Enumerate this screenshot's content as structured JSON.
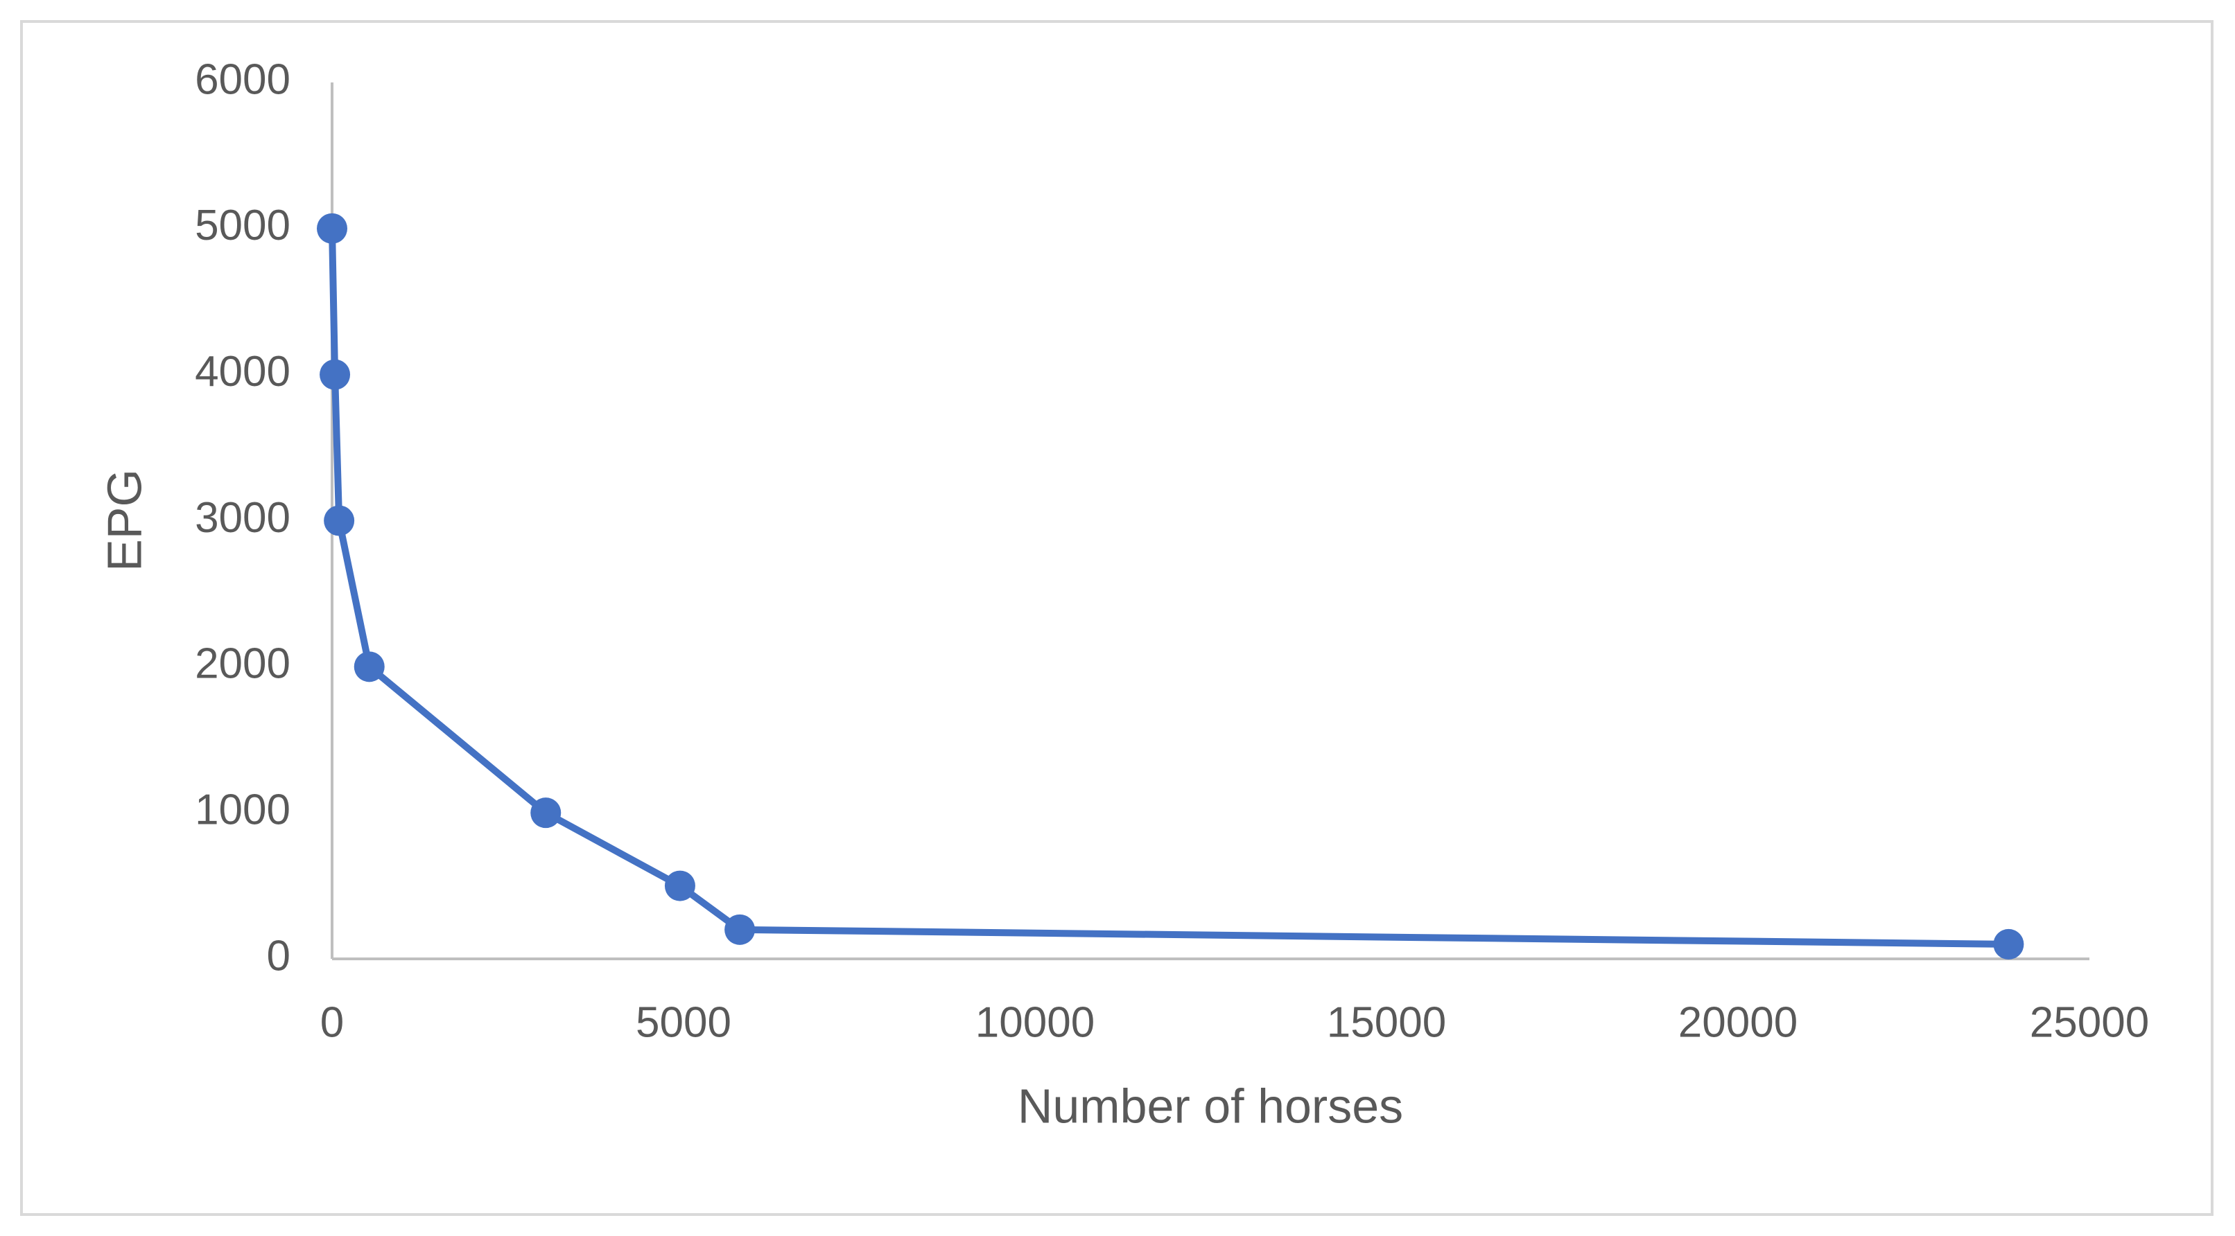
{
  "chart_data": {
    "type": "line",
    "x_label": "Number of horses",
    "y_label": "EPG",
    "x": [
      0,
      40,
      100,
      530,
      3040,
      4950,
      5800,
      23850
    ],
    "series": [
      {
        "name": "EPG",
        "color": "#4472c4",
        "values": [
          5000,
          4000,
          3000,
          2000,
          1000,
          500,
          200,
          100
        ]
      }
    ],
    "xlim": [
      0,
      25000
    ],
    "xticks": [
      0,
      5000,
      10000,
      15000,
      20000,
      25000
    ],
    "ylim": [
      0,
      6000
    ],
    "yticks": [
      0,
      1000,
      2000,
      3000,
      4000,
      5000,
      6000
    ],
    "grid": false
  }
}
